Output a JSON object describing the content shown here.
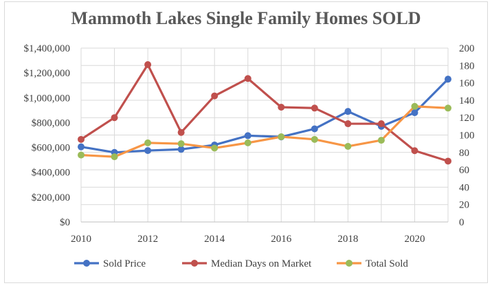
{
  "chart_data": {
    "type": "line",
    "title": "Mammoth Lakes Single Family Homes SOLD",
    "x": [
      2010,
      2011,
      2012,
      2013,
      2014,
      2015,
      2016,
      2017,
      2018,
      2019,
      2020,
      2021
    ],
    "x_ticks": [
      "2010",
      "2012",
      "2014",
      "2016",
      "2018",
      "2020"
    ],
    "xlim": [
      2010,
      2021
    ],
    "y_left": {
      "lim": [
        0,
        1400000
      ],
      "ticks": [
        "$0",
        "$200,000",
        "$400,000",
        "$600,000",
        "$800,000",
        "$1,000,000",
        "$1,200,000",
        "$1,400,000"
      ]
    },
    "y_right": {
      "lim": [
        0,
        200
      ],
      "ticks": [
        "0",
        "20",
        "40",
        "60",
        "80",
        "100",
        "120",
        "140",
        "160",
        "180",
        "200"
      ]
    },
    "grid": true,
    "legend_position": "bottom",
    "series": [
      {
        "name": "Sold Price",
        "axis": "left",
        "color": "#4472c4",
        "values": [
          605000,
          560000,
          575000,
          585000,
          620000,
          695000,
          685000,
          750000,
          890000,
          770000,
          880000,
          1150000
        ]
      },
      {
        "name": "Median Days on Market",
        "axis": "right",
        "color": "#c0504d",
        "values": [
          95,
          120,
          181,
          103,
          145,
          165,
          132,
          131,
          113,
          113,
          82,
          70
        ]
      },
      {
        "name": "Total Sold",
        "axis": "right",
        "color": "#f79646",
        "marker_color": "#9bbb59",
        "values": [
          77,
          75,
          91,
          90,
          85,
          91,
          98,
          95,
          87,
          94,
          133,
          131
        ]
      }
    ]
  }
}
